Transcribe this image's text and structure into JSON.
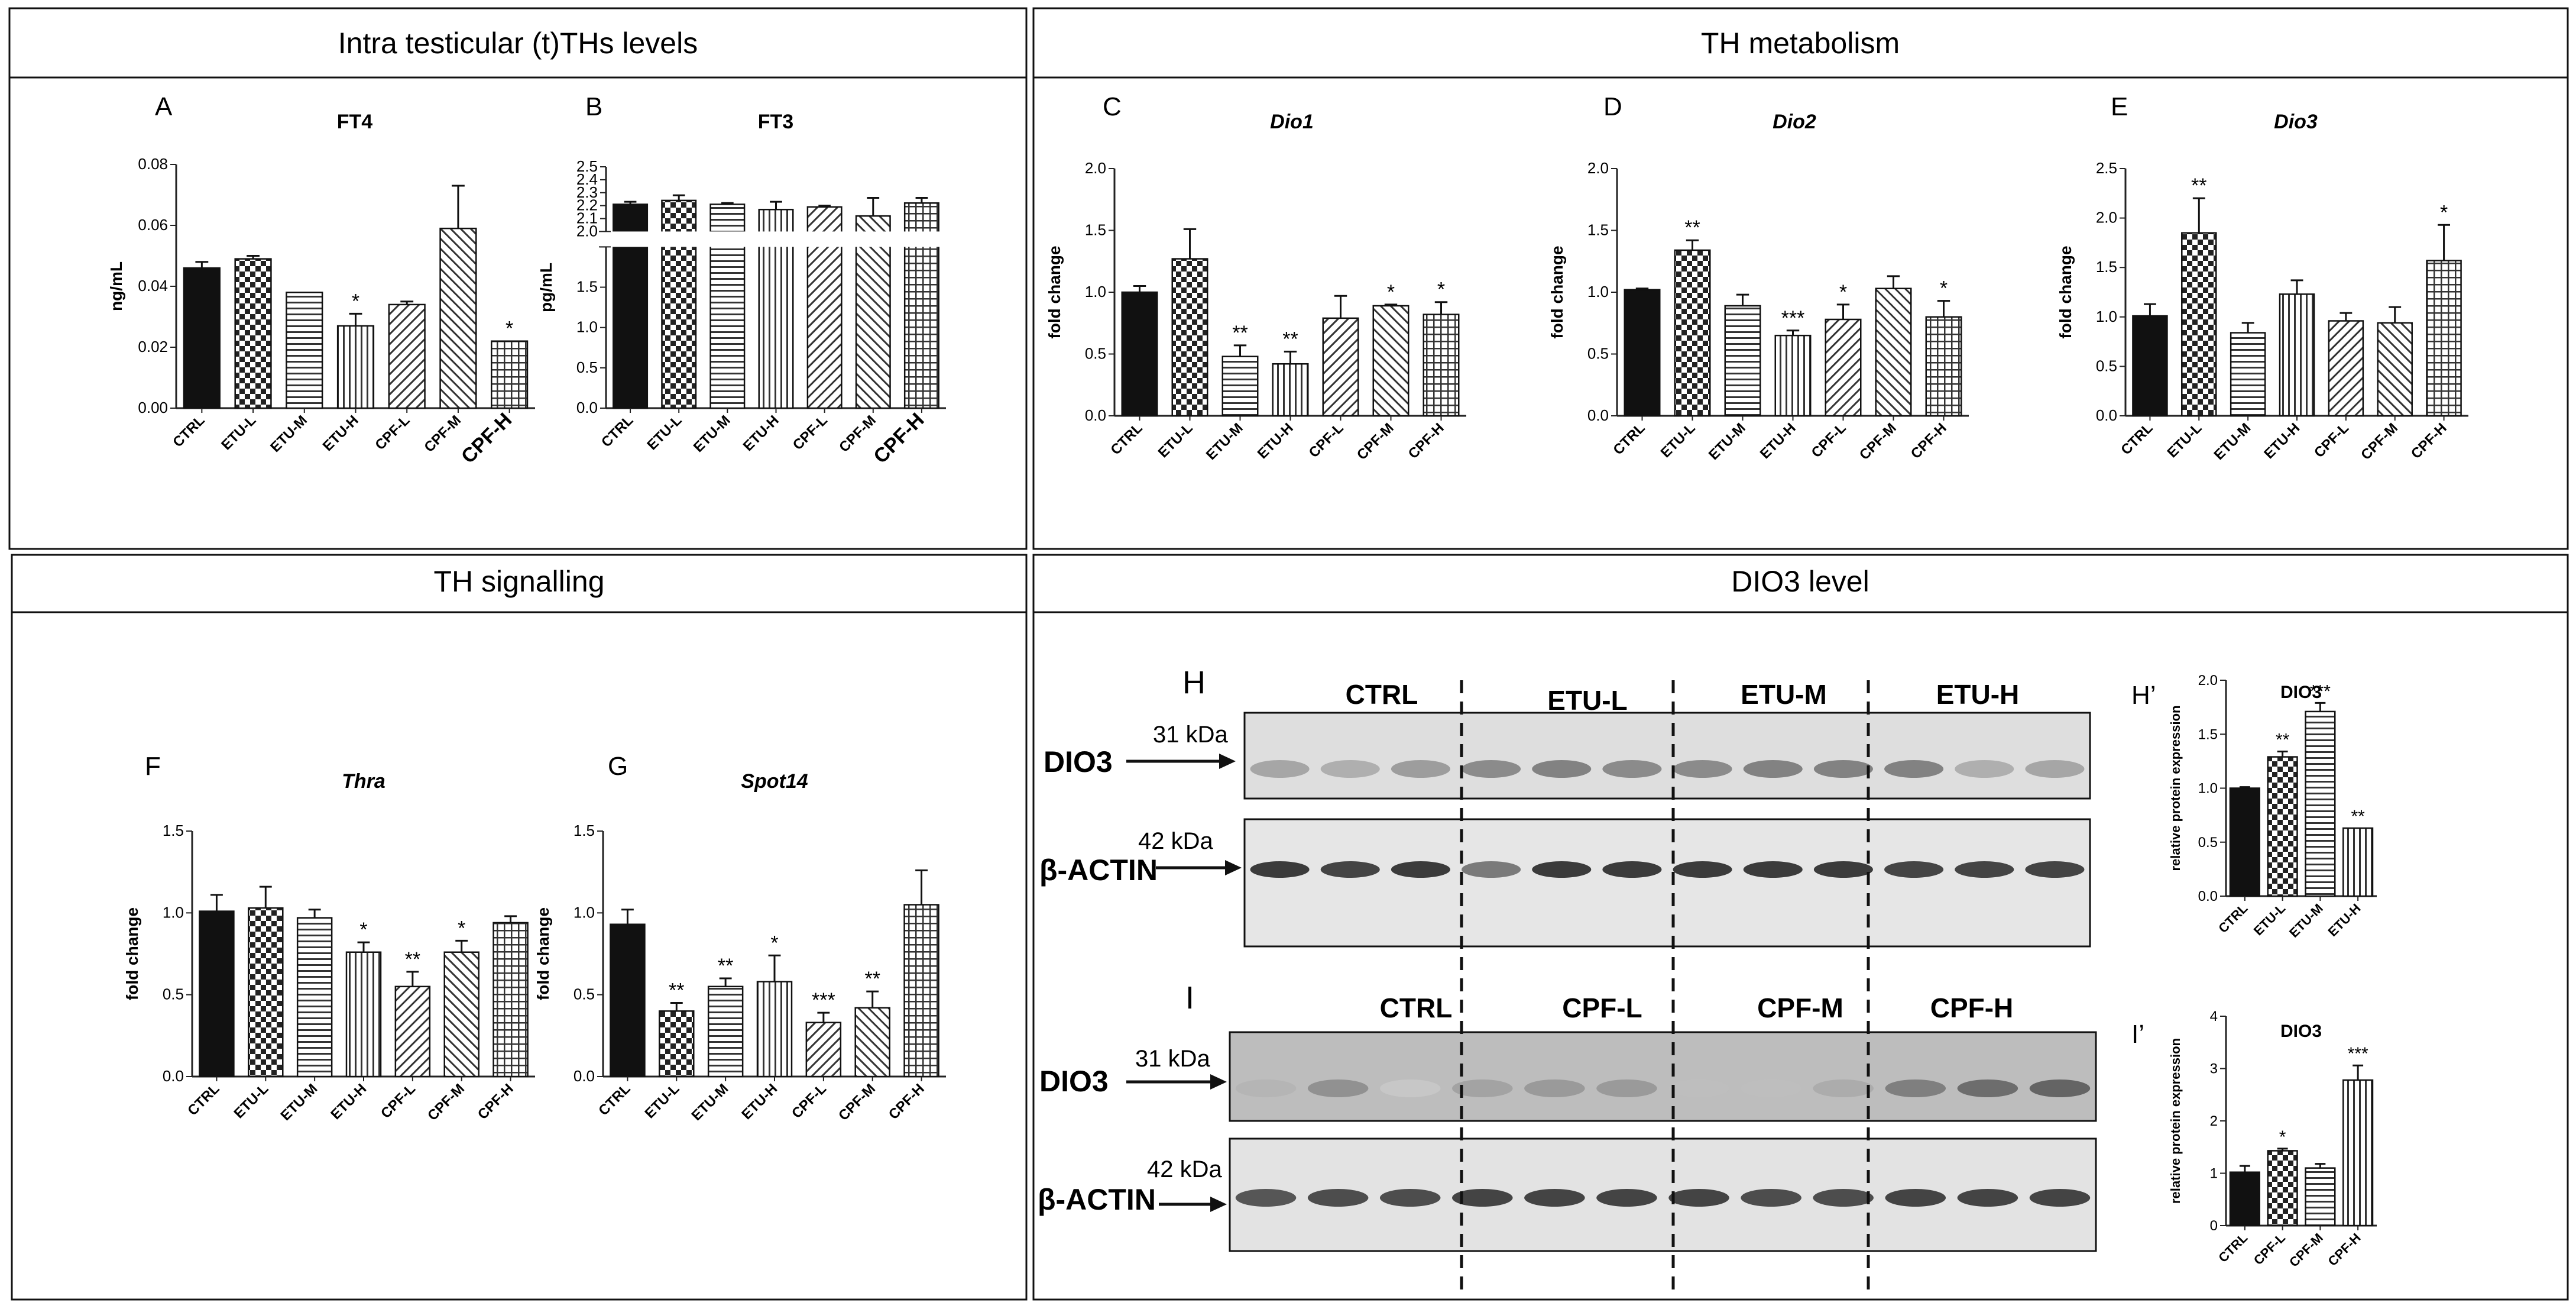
{
  "sections": {
    "intra": "Intra testicular (t)THs levels",
    "metab": "TH metabolism",
    "signal": "TH signalling",
    "dio3level": "DIO3 level"
  },
  "chart_data": [
    {
      "id": "A",
      "panel": "A",
      "type": "bar",
      "title": "FT4",
      "italic": false,
      "ylabel": "ng/mL",
      "ylim": [
        0,
        0.08
      ],
      "yticks": [
        "0.00",
        "0.02",
        "0.04",
        "0.06",
        "0.08"
      ],
      "categories": [
        "CTRL",
        "ETU-L",
        "ETU-M",
        "ETU-H",
        "CPF-L",
        "CPF-M",
        "CPF-H"
      ],
      "values": [
        0.046,
        0.049,
        0.038,
        0.027,
        0.034,
        0.059,
        0.022
      ],
      "errors": [
        0.002,
        0.001,
        0,
        0.004,
        0.001,
        0.014,
        0
      ],
      "sig": [
        "",
        "",
        "",
        "*",
        "",
        "",
        "*"
      ]
    },
    {
      "id": "B",
      "panel": "B",
      "type": "bar",
      "title": "FT3",
      "italic": false,
      "ylabel": "pg/mL",
      "broken_axis": true,
      "lower_ylim": [
        0,
        2.0
      ],
      "upper_ylim": [
        2.0,
        2.5
      ],
      "yticks_lower": [
        "0.0",
        "0.5",
        "1.0",
        "1.5",
        "2.0"
      ],
      "yticks_upper": [
        "2.0",
        "2.1",
        "2.2",
        "2.3",
        "2.4",
        "2.5"
      ],
      "categories": [
        "CTRL",
        "ETU-L",
        "ETU-M",
        "ETU-H",
        "CPF-L",
        "CPF-M",
        "CPF-H"
      ],
      "values": [
        2.21,
        2.24,
        2.21,
        2.17,
        2.19,
        2.12,
        2.22
      ],
      "errors": [
        0.02,
        0.04,
        0.01,
        0.06,
        0.01,
        0.14,
        0.04
      ],
      "sig": [
        "",
        "",
        "",
        "",
        "",
        "",
        ""
      ]
    },
    {
      "id": "C",
      "panel": "C",
      "type": "bar",
      "title": "Dio1",
      "italic": true,
      "ylabel": "fold change",
      "ylim": [
        0,
        2.0
      ],
      "yticks": [
        "0.0",
        "0.5",
        "1.0",
        "1.5",
        "2.0"
      ],
      "categories": [
        "CTRL",
        "ETU-L",
        "ETU-M",
        "ETU-H",
        "CPF-L",
        "CPF-M",
        "CPF-H"
      ],
      "values": [
        1.0,
        1.27,
        0.48,
        0.42,
        0.79,
        0.89,
        0.82
      ],
      "errors": [
        0.05,
        0.24,
        0.09,
        0.1,
        0.18,
        0.01,
        0.1
      ],
      "sig": [
        "",
        "",
        "**",
        "**",
        "",
        "*",
        "*"
      ]
    },
    {
      "id": "D",
      "panel": "D",
      "type": "bar",
      "title": "Dio2",
      "italic": true,
      "ylabel": "fold change",
      "ylim": [
        0,
        2.0
      ],
      "yticks": [
        "0.0",
        "0.5",
        "1.0",
        "1.5",
        "2.0"
      ],
      "categories": [
        "CTRL",
        "ETU-L",
        "ETU-M",
        "ETU-H",
        "CPF-L",
        "CPF-M",
        "CPF-H"
      ],
      "values": [
        1.02,
        1.34,
        0.89,
        0.65,
        0.78,
        1.03,
        0.8
      ],
      "errors": [
        0.01,
        0.08,
        0.09,
        0.04,
        0.12,
        0.1,
        0.13
      ],
      "sig": [
        "",
        "**",
        "",
        "***",
        "*",
        "",
        "*"
      ]
    },
    {
      "id": "E",
      "panel": "E",
      "type": "bar",
      "title": "Dio3",
      "italic": true,
      "ylabel": "fold change",
      "ylim": [
        0,
        2.5
      ],
      "yticks": [
        "0.0",
        "0.5",
        "1.0",
        "1.5",
        "2.0",
        "2.5"
      ],
      "categories": [
        "CTRL",
        "ETU-L",
        "ETU-M",
        "ETU-H",
        "CPF-L",
        "CPF-M",
        "CPF-H"
      ],
      "values": [
        1.01,
        1.85,
        0.84,
        1.23,
        0.96,
        0.94,
        1.57
      ],
      "errors": [
        0.12,
        0.35,
        0.1,
        0.14,
        0.08,
        0.16,
        0.36
      ],
      "sig": [
        "",
        "**",
        "",
        "",
        "",
        "",
        "*"
      ]
    },
    {
      "id": "F",
      "panel": "F",
      "type": "bar",
      "title": "Thra",
      "italic": true,
      "ylabel": "fold change",
      "ylim": [
        0,
        1.5
      ],
      "yticks": [
        "0.0",
        "0.5",
        "1.0",
        "1.5"
      ],
      "categories": [
        "CTRL",
        "ETU-L",
        "ETU-M",
        "ETU-H",
        "CPF-L",
        "CPF-M",
        "CPF-H"
      ],
      "values": [
        1.01,
        1.03,
        0.97,
        0.76,
        0.55,
        0.76,
        0.94
      ],
      "errors": [
        0.1,
        0.13,
        0.05,
        0.06,
        0.09,
        0.07,
        0.04
      ],
      "sig": [
        "",
        "",
        "",
        "*",
        "**",
        "*",
        ""
      ]
    },
    {
      "id": "G",
      "panel": "G",
      "type": "bar",
      "title": "Spot14",
      "italic": true,
      "ylabel": "fold change",
      "ylim": [
        0,
        1.5
      ],
      "yticks": [
        "0.0",
        "0.5",
        "1.0",
        "1.5"
      ],
      "categories": [
        "CTRL",
        "ETU-L",
        "ETU-M",
        "ETU-H",
        "CPF-L",
        "CPF-M",
        "CPF-H"
      ],
      "values": [
        0.93,
        0.4,
        0.55,
        0.58,
        0.33,
        0.42,
        1.05
      ],
      "errors": [
        0.09,
        0.05,
        0.05,
        0.16,
        0.06,
        0.1,
        0.21
      ],
      "sig": [
        "",
        "**",
        "**",
        "*",
        "***",
        "**",
        ""
      ]
    },
    {
      "id": "H2",
      "panel": "H’",
      "type": "bar",
      "title": "DIO3",
      "italic": false,
      "ylabel": "relative protein expression",
      "ylim": [
        0,
        2.0
      ],
      "yticks": [
        "0.0",
        "0.5",
        "1.0",
        "1.5",
        "2.0"
      ],
      "categories": [
        "CTRL",
        "ETU-L",
        "ETU-M",
        "ETU-H"
      ],
      "values": [
        1.0,
        1.29,
        1.71,
        0.63
      ],
      "errors": [
        0.01,
        0.05,
        0.08,
        0
      ],
      "sig": [
        "",
        "**",
        "***",
        "**"
      ]
    },
    {
      "id": "I2",
      "panel": "I’",
      "type": "bar",
      "title": "DIO3",
      "italic": false,
      "ylabel": "relative protein expression",
      "ylim": [
        0,
        4
      ],
      "yticks": [
        "0",
        "1",
        "2",
        "3",
        "4"
      ],
      "categories": [
        "CTRL",
        "CPF-L",
        "CPF-M",
        "CPF-H"
      ],
      "values": [
        1.02,
        1.43,
        1.1,
        2.78
      ],
      "errors": [
        0.12,
        0.04,
        0.08,
        0.28
      ],
      "sig": [
        "",
        "*",
        "",
        "***"
      ]
    }
  ],
  "blots": {
    "H": {
      "label": "H",
      "groups": [
        "CTRL",
        "ETU-L",
        "ETU-M",
        "ETU-H"
      ],
      "band_top": "DIO3",
      "band_bottom": "β-ACTIN",
      "kda_top": "31 kDa",
      "kda_bottom": "42 kDa",
      "top_intensity": [
        0.35,
        0.3,
        0.4,
        0.5,
        0.55,
        0.5,
        0.5,
        0.55,
        0.55,
        0.55,
        0.3,
        0.35
      ],
      "bottom_intensity": [
        0.95,
        0.9,
        0.95,
        0.6,
        0.95,
        0.95,
        0.95,
        0.95,
        0.95,
        0.9,
        0.9,
        0.9
      ]
    },
    "I": {
      "label": "I",
      "groups": [
        "CTRL",
        "CPF-L",
        "CPF-M",
        "CPF-H"
      ],
      "band_top": "DIO3",
      "band_bottom": "β-ACTIN",
      "kda_top": "31 kDa",
      "kda_bottom": "42 kDa",
      "top_intensity": [
        0.25,
        0.45,
        0.15,
        0.35,
        0.4,
        0.4,
        0.2,
        0.2,
        0.3,
        0.55,
        0.65,
        0.7
      ],
      "bottom_intensity": [
        0.8,
        0.85,
        0.85,
        0.9,
        0.9,
        0.9,
        0.9,
        0.85,
        0.85,
        0.9,
        0.9,
        0.9
      ]
    }
  },
  "colors": {
    "black": "#111111",
    "line": "#222222"
  }
}
